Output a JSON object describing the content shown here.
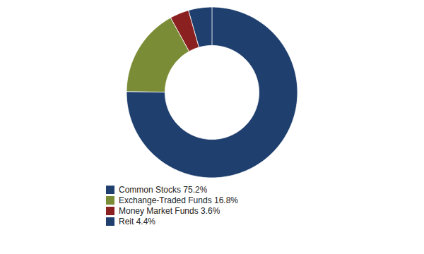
{
  "chart_data": {
    "type": "pie",
    "categories": [
      "Common Stocks 75.2%",
      "Exchange-Traded Funds 16.8%",
      "Money Market Funds 3.6%",
      "Reit 4.4%"
    ],
    "values": [
      75.2,
      16.8,
      3.6,
      4.4
    ],
    "colors": [
      "#1F3F6E",
      "#7A8C35",
      "#8B2020",
      "#1F3F6E"
    ],
    "legend": "bottom"
  }
}
